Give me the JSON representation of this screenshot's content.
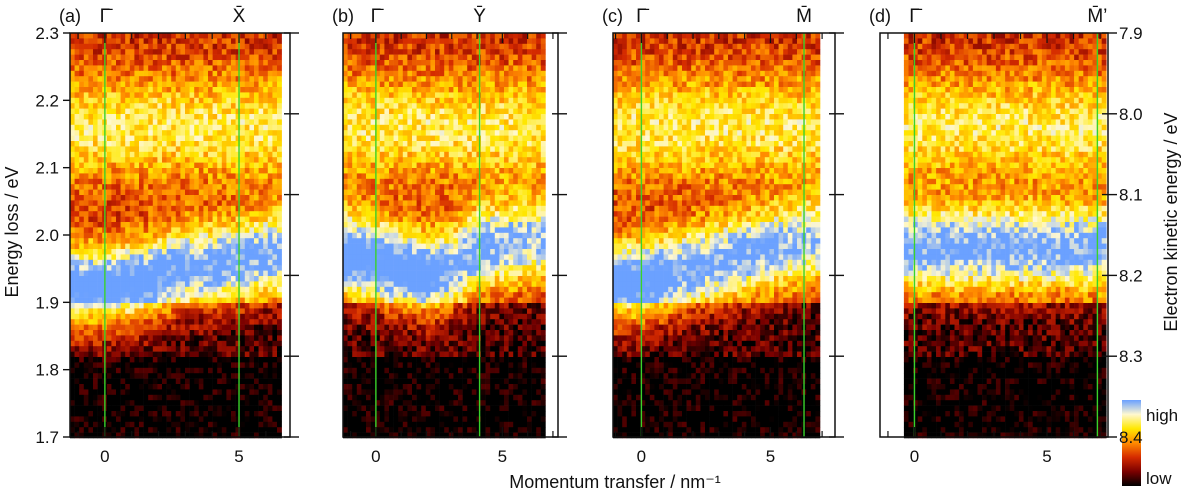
{
  "chart_data": {
    "type": "heatmap",
    "x_label": "Momentum transfer / nm⁻¹",
    "y_label_left": "Energy loss / eV",
    "y_label_right": "Electron kinetic energy / eV",
    "y_range_left": [
      1.7,
      2.3
    ],
    "y_ticks_left": [
      "2.3",
      "2.2",
      "2.1",
      "2.0",
      "1.9",
      "1.8",
      "1.7"
    ],
    "y_range_right": [
      7.9,
      8.4
    ],
    "y_ticks_right": [
      "7.9",
      "8.0",
      "8.1",
      "8.2",
      "8.3",
      "8.4"
    ],
    "x_ticks": [
      0,
      5
    ],
    "x_tick_labels": [
      "0",
      "5"
    ],
    "colorbar": {
      "high_label": "high",
      "low_label": "low",
      "colors": [
        "#000000",
        "#7a0000",
        "#d42a00",
        "#ff8a00",
        "#ffe800",
        "#fff8d0",
        "#6aa0ff"
      ]
    },
    "panels": [
      {
        "label": "(a)",
        "x_range": [
          -1.3,
          6.9
        ],
        "data_x_range": [
          -1.3,
          6.5
        ],
        "high_symmetry_points": [
          {
            "name": "Γ̄",
            "x": 0
          },
          {
            "name": "X̄",
            "x": 5
          }
        ],
        "peak_energy_loss_by_momentum": [
          {
            "q": -1.0,
            "energy_loss": 1.92,
            "intensity": "high"
          },
          {
            "q": 0.0,
            "energy_loss": 1.92,
            "intensity": "high"
          },
          {
            "q": 1.5,
            "energy_loss": 1.93,
            "intensity": "high"
          },
          {
            "q": 3.0,
            "energy_loss": 1.95,
            "intensity": "medium"
          },
          {
            "q": 5.0,
            "energy_loss": 1.96,
            "intensity": "medium"
          },
          {
            "q": 6.0,
            "energy_loss": 1.97,
            "intensity": "medium"
          }
        ]
      },
      {
        "label": "(b)",
        "x_range": [
          -1.3,
          7.2
        ],
        "data_x_range": [
          -1.3,
          6.6
        ],
        "high_symmetry_points": [
          {
            "name": "Γ̄",
            "x": 0
          },
          {
            "name": "Ȳ",
            "x": 4.1
          }
        ],
        "peak_energy_loss_by_momentum": [
          {
            "q": -1.0,
            "energy_loss": 1.97,
            "intensity": "high"
          },
          {
            "q": 0.0,
            "energy_loss": 1.96,
            "intensity": "high"
          },
          {
            "q": 2.0,
            "energy_loss": 1.94,
            "intensity": "high"
          },
          {
            "q": 3.0,
            "energy_loss": 1.95,
            "intensity": "medium"
          },
          {
            "q": 4.1,
            "energy_loss": 1.98,
            "intensity": "medium"
          },
          {
            "q": 6.0,
            "energy_loss": 1.99,
            "intensity": "low"
          }
        ]
      },
      {
        "label": "(c)",
        "x_range": [
          -1.1,
          7.5
        ],
        "data_x_range": [
          -1.1,
          6.8
        ],
        "high_symmetry_points": [
          {
            "name": "Γ̄",
            "x": 0
          },
          {
            "name": "M̄",
            "x": 6.3
          }
        ],
        "peak_energy_loss_by_momentum": [
          {
            "q": -1.0,
            "energy_loss": 1.93,
            "intensity": "high"
          },
          {
            "q": 0.0,
            "energy_loss": 1.93,
            "intensity": "high"
          },
          {
            "q": 2.0,
            "energy_loss": 1.95,
            "intensity": "medium"
          },
          {
            "q": 4.0,
            "energy_loss": 1.97,
            "intensity": "medium"
          },
          {
            "q": 6.3,
            "energy_loss": 1.99,
            "intensity": "low"
          }
        ]
      },
      {
        "label": "(d)",
        "x_range": [
          -1.3,
          7.3
        ],
        "data_x_range": [
          -0.4,
          7.2
        ],
        "high_symmetry_points": [
          {
            "name": "Γ̄",
            "x": 0
          },
          {
            "name": "M̄’",
            "x": 6.9
          }
        ],
        "peak_energy_loss_by_momentum": [
          {
            "q": 0.0,
            "energy_loss": 1.98,
            "intensity": "medium"
          },
          {
            "q": 2.0,
            "energy_loss": 1.98,
            "intensity": "medium"
          },
          {
            "q": 4.0,
            "energy_loss": 1.98,
            "intensity": "medium"
          },
          {
            "q": 6.9,
            "energy_loss": 1.98,
            "intensity": "medium"
          }
        ]
      }
    ]
  }
}
